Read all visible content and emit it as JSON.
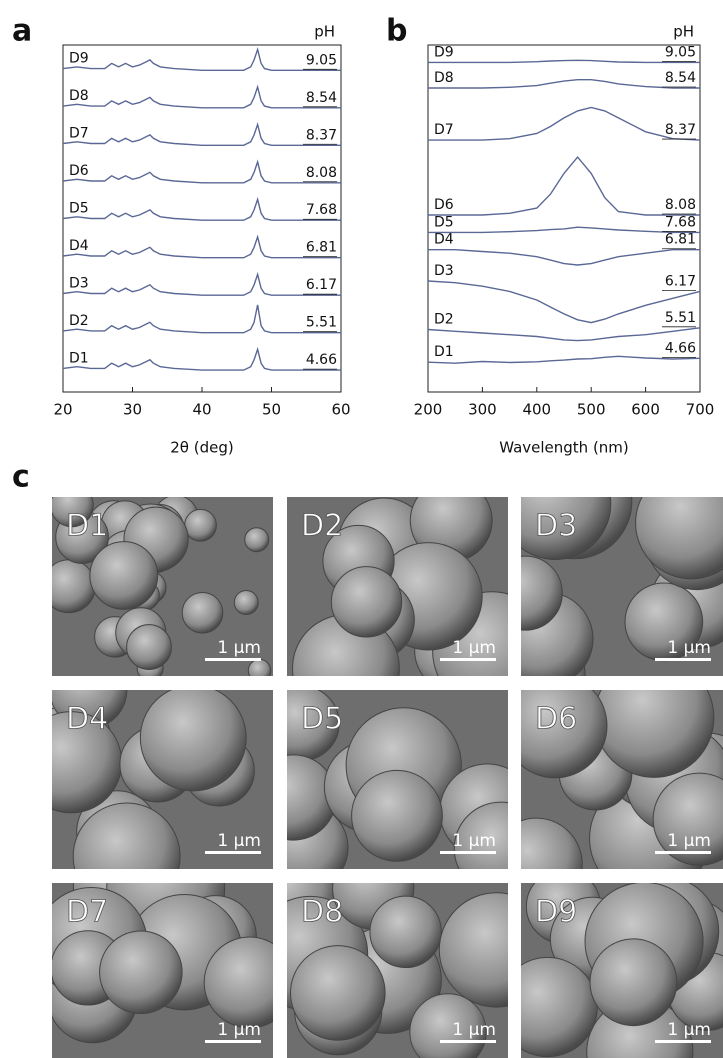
{
  "chart_data": [
    {
      "type": "line",
      "label": "a",
      "xlabel": "2θ (deg)",
      "ph_label": "pH",
      "color": "#5a6896",
      "xlim": [
        20,
        60
      ],
      "xticks": [
        20,
        30,
        40,
        50,
        60
      ],
      "ylim": [
        0,
        100
      ],
      "x": [
        20,
        22,
        24,
        26,
        27,
        27.5,
        28,
        29,
        30,
        31,
        32,
        32.5,
        33,
        34,
        36,
        40,
        44,
        46,
        47,
        47.5,
        48,
        48.5,
        49,
        50,
        54,
        58,
        60
      ],
      "series": [
        {
          "name": "D1",
          "ph": 4.66,
          "values": [
            6.8,
            7.3,
            6.8,
            6.8,
            8.3,
            7.8,
            7.3,
            8.3,
            7.3,
            7.8,
            8.8,
            9.3,
            8.3,
            7.3,
            6.8,
            6.3,
            6.3,
            6.3,
            7.3,
            9.3,
            12.3,
            8.3,
            6.8,
            6.3,
            6.3,
            6.3,
            6.3
          ]
        },
        {
          "name": "D2",
          "ph": 5.51,
          "values": [
            17.6,
            18.1,
            17.6,
            17.6,
            19.1,
            18.6,
            18.1,
            19.1,
            18.1,
            18.6,
            19.6,
            20.1,
            19.1,
            18.1,
            17.6,
            17.1,
            17.1,
            17.1,
            18.1,
            20.1,
            25.1,
            19.1,
            17.6,
            17.1,
            17.1,
            17.1,
            17.1
          ]
        },
        {
          "name": "D3",
          "ph": 6.17,
          "values": [
            28.4,
            28.9,
            28.4,
            28.4,
            29.9,
            29.4,
            28.9,
            29.9,
            28.9,
            29.4,
            30.4,
            30.9,
            29.9,
            28.9,
            28.4,
            27.9,
            27.9,
            27.9,
            28.9,
            30.9,
            33.9,
            29.9,
            28.4,
            27.9,
            27.9,
            27.9,
            27.9
          ]
        },
        {
          "name": "D4",
          "ph": 6.81,
          "values": [
            39.2,
            39.7,
            39.2,
            39.2,
            40.7,
            40.2,
            39.7,
            40.7,
            39.7,
            40.2,
            41.2,
            41.7,
            40.7,
            39.7,
            39.2,
            38.7,
            38.7,
            38.7,
            39.7,
            41.7,
            44.7,
            40.7,
            39.2,
            38.7,
            38.7,
            38.7,
            38.7
          ]
        },
        {
          "name": "D5",
          "ph": 7.68,
          "values": [
            50,
            50.5,
            50,
            50,
            51.5,
            51,
            50.5,
            51.5,
            50.5,
            51,
            52,
            52.5,
            51.5,
            50.5,
            50,
            49.5,
            49.5,
            49.5,
            50.5,
            52.5,
            55.5,
            51.5,
            50,
            49.5,
            49.5,
            49.5,
            49.5
          ]
        },
        {
          "name": "D6",
          "ph": 8.08,
          "values": [
            60.8,
            61.3,
            60.8,
            60.8,
            62.3,
            61.8,
            61.3,
            62.3,
            61.3,
            61.8,
            62.8,
            63.3,
            62.3,
            61.3,
            60.8,
            60.3,
            60.3,
            60.3,
            61.3,
            63.3,
            66.3,
            62.3,
            60.8,
            60.3,
            60.3,
            60.3,
            60.3
          ]
        },
        {
          "name": "D7",
          "ph": 8.37,
          "values": [
            71.6,
            72.1,
            71.6,
            71.6,
            73.1,
            72.6,
            72.1,
            73.1,
            72.1,
            72.6,
            73.6,
            74.1,
            73.1,
            72.1,
            71.6,
            71.1,
            71.1,
            71.1,
            72.1,
            74.1,
            77.1,
            73.1,
            71.6,
            71.1,
            71.1,
            71.1,
            71.1
          ]
        },
        {
          "name": "D8",
          "ph": 8.54,
          "values": [
            82.4,
            82.9,
            82.4,
            82.4,
            83.9,
            83.4,
            82.9,
            83.9,
            82.9,
            83.4,
            84.4,
            84.9,
            83.9,
            82.9,
            82.4,
            81.9,
            81.9,
            81.9,
            82.9,
            84.9,
            87.9,
            83.9,
            82.4,
            81.9,
            81.9,
            81.9,
            81.9
          ]
        },
        {
          "name": "D9",
          "ph": 9.05,
          "values": [
            93.2,
            93.7,
            93.2,
            93.2,
            94.7,
            94.2,
            93.7,
            94.7,
            93.7,
            94.2,
            95.2,
            95.7,
            94.7,
            93.7,
            93.2,
            92.7,
            92.7,
            92.7,
            93.7,
            95.7,
            98.7,
            94.7,
            93.2,
            92.7,
            92.7,
            92.7,
            92.7
          ]
        }
      ]
    },
    {
      "type": "line",
      "label": "b",
      "xlabel": "Wavelength (nm)",
      "ph_label": "pH",
      "color": "#5a6896",
      "xlim": [
        200,
        700
      ],
      "xticks": [
        200,
        300,
        400,
        500,
        600,
        700
      ],
      "ylim": [
        0,
        100
      ],
      "x": [
        200,
        250,
        300,
        350,
        400,
        425,
        450,
        475,
        500,
        525,
        550,
        600,
        650,
        700
      ],
      "series": [
        {
          "name": "D1",
          "ph": 4.66,
          "values": [
            8.6,
            8.3,
            8.8,
            8.5,
            8.7,
            9,
            9.2,
            9.5,
            9.6,
            10,
            10.3,
            9.8,
            9.5,
            9.7
          ]
        },
        {
          "name": "D2",
          "ph": 5.51,
          "values": [
            18,
            17.5,
            17,
            16.5,
            16,
            15.5,
            15,
            14.8,
            15,
            15.5,
            16,
            16.5,
            17.5,
            18.5
          ]
        },
        {
          "name": "D3",
          "ph": 6.17,
          "values": [
            32,
            31.5,
            30.5,
            29,
            26.5,
            24.5,
            22.5,
            20.8,
            20,
            21,
            22.5,
            25,
            27,
            29
          ]
        },
        {
          "name": "D4",
          "ph": 6.81,
          "values": [
            41,
            41,
            40.5,
            40,
            39,
            38,
            37,
            36.6,
            37,
            38,
            39,
            40,
            41,
            41
          ]
        },
        {
          "name": "D5",
          "ph": 7.68,
          "values": [
            46,
            46,
            46,
            46.2,
            46.5,
            46.8,
            47,
            47.5,
            47.3,
            47,
            46.7,
            46.3,
            46,
            46
          ]
        },
        {
          "name": "D6",
          "ph": 8.08,
          "values": [
            51,
            51,
            51,
            51.5,
            53,
            57,
            63,
            67.7,
            63,
            56,
            52,
            51,
            51,
            51
          ]
        },
        {
          "name": "D7",
          "ph": 8.37,
          "values": [
            72.6,
            72.6,
            72.6,
            73,
            74.5,
            76.5,
            79,
            81,
            82,
            81,
            79,
            75,
            73,
            72.6
          ]
        },
        {
          "name": "D8",
          "ph": 8.54,
          "values": [
            87.6,
            87.6,
            87.6,
            87.8,
            88.3,
            89,
            89.6,
            90,
            90,
            89.5,
            88.8,
            88,
            87.6,
            87.6
          ]
        },
        {
          "name": "D9",
          "ph": 9.05,
          "values": [
            95,
            95,
            95,
            95,
            95.2,
            95.4,
            95.5,
            95.6,
            95.5,
            95.3,
            95.1,
            95,
            95,
            95
          ]
        }
      ]
    }
  ],
  "sem": {
    "label": "c",
    "panels": [
      {
        "name": "D1",
        "scale": "1 μm"
      },
      {
        "name": "D2",
        "scale": "1 μm"
      },
      {
        "name": "D3",
        "scale": "1 μm"
      },
      {
        "name": "D4",
        "scale": "1 μm"
      },
      {
        "name": "D5",
        "scale": "1 μm"
      },
      {
        "name": "D6",
        "scale": "1 μm"
      },
      {
        "name": "D7",
        "scale": "1 μm"
      },
      {
        "name": "D8",
        "scale": "1 μm"
      },
      {
        "name": "D9",
        "scale": "1 μm"
      }
    ]
  }
}
